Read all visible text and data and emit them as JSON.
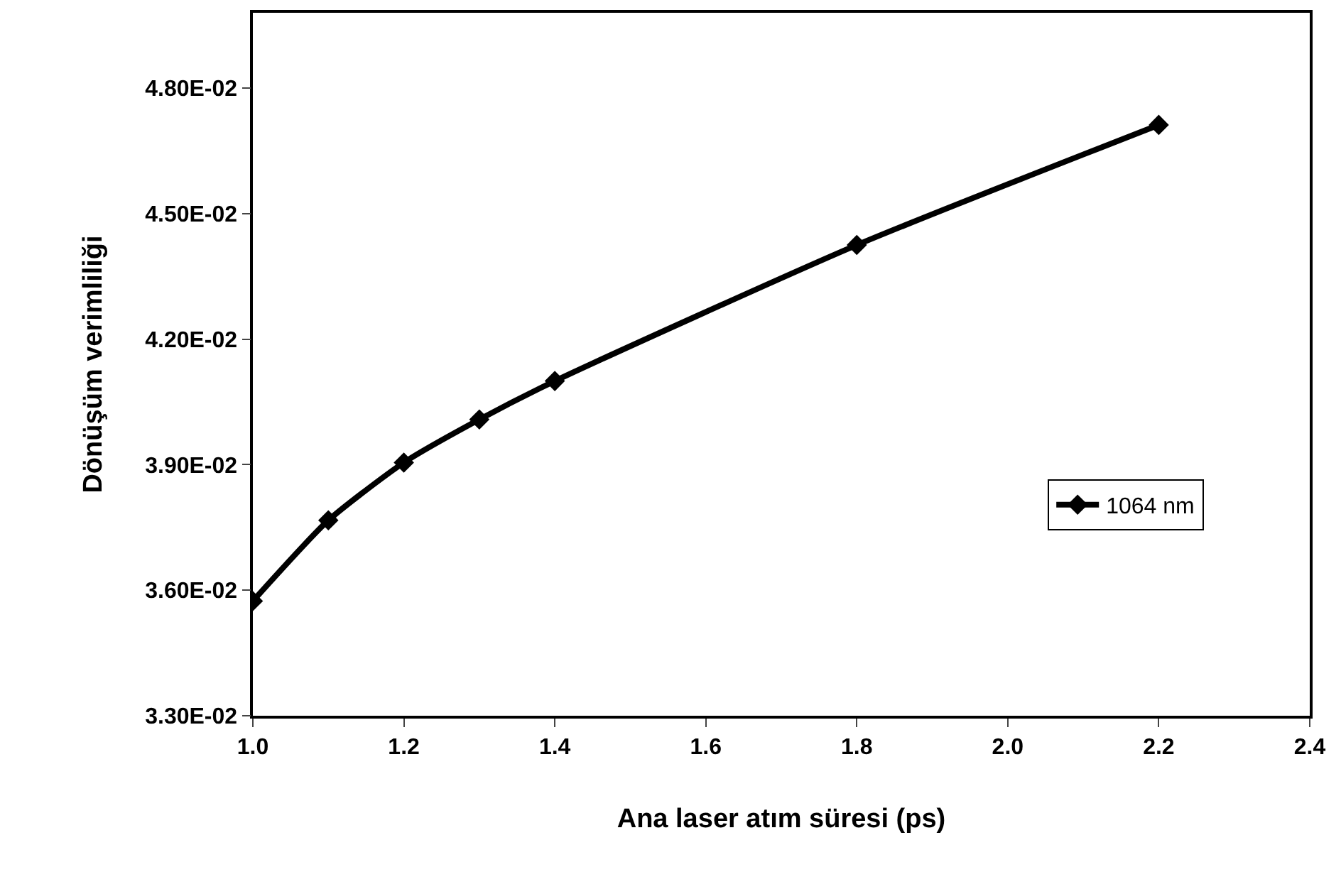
{
  "chart_data": {
    "type": "line",
    "xlabel": "Ana laser atım süresi (ps)",
    "ylabel": "Dönüşüm verimliliği",
    "x": [
      1.0,
      1.1,
      1.2,
      1.3,
      1.4,
      1.8,
      2.2
    ],
    "series": [
      {
        "name": "1064 nm",
        "color": "#000000",
        "values": [
          0.03574,
          0.03767,
          0.03905,
          0.04008,
          0.041,
          0.04425,
          0.04712
        ]
      }
    ],
    "xlim": [
      1.0,
      2.4
    ],
    "xticks": [
      {
        "value": 1.0,
        "label": "1.0"
      },
      1.2,
      1.4,
      1.6,
      1.8,
      {
        "value": 2.0,
        "label": "2.0"
      },
      2.2,
      2.4
    ],
    "ylim": [
      0.033,
      0.0498
    ],
    "yticks": [
      {
        "value": 0.033,
        "label": "3.30E-02"
      },
      {
        "value": 0.036,
        "label": "3.60E-02"
      },
      {
        "value": 0.039,
        "label": "3.90E-02"
      },
      {
        "value": 0.042,
        "label": "4.20E-02"
      },
      {
        "value": 0.045,
        "label": "4.50E-02"
      },
      {
        "value": 0.048,
        "label": "4.80E-02"
      }
    ],
    "legend": "right",
    "marker": "diamond",
    "line_style": "solid"
  }
}
